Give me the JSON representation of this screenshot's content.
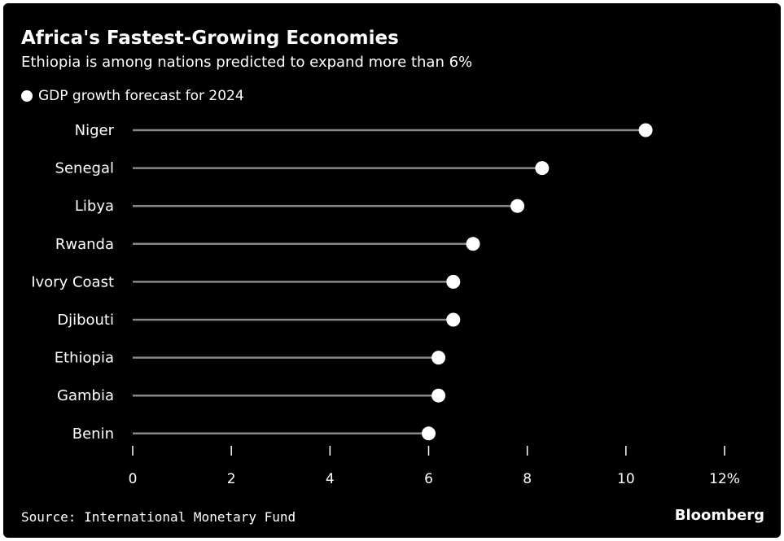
{
  "chart_data": {
    "type": "lollipop",
    "title": "Africa's Fastest-Growing Economies",
    "subtitle": "Ethiopia is among nations predicted to expand more than 6%",
    "legend": {
      "label": "GDP growth forecast for 2024",
      "placement": "top-left"
    },
    "categories": [
      "Niger",
      "Senegal",
      "Libya",
      "Rwanda",
      "Ivory Coast",
      "Djibouti",
      "Ethiopia",
      "Gambia",
      "Benin"
    ],
    "series": [
      {
        "name": "GDP growth forecast for 2024",
        "values": [
          10.4,
          8.3,
          7.8,
          6.9,
          6.5,
          6.5,
          6.2,
          6.2,
          6.0
        ]
      }
    ],
    "xlim": [
      0,
      12
    ],
    "xticks": [
      0,
      2,
      4,
      6,
      8,
      10,
      12
    ],
    "xtick_labels": [
      "0",
      "2",
      "4",
      "6",
      "8",
      "10",
      "12%"
    ],
    "grid": false,
    "source": "Source: International Monetary Fund",
    "brand": "Bloomberg",
    "colors": {
      "background": "#000000",
      "stem": "#888888",
      "dot": "#ffffff",
      "text": "#ffffff"
    }
  }
}
